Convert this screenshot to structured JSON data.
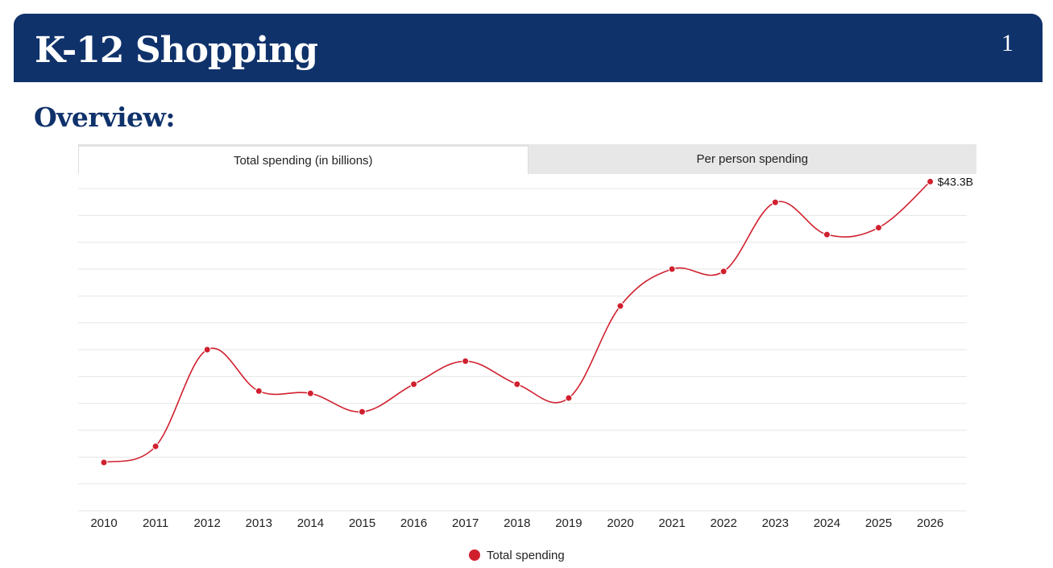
{
  "header": {
    "title": "K-12 Shopping",
    "page_number": "1"
  },
  "section_title": "Overview:",
  "tabs": [
    {
      "label": "Total spending (in billions)",
      "active": true
    },
    {
      "label": "Per person spending",
      "active": false
    }
  ],
  "colors": {
    "header_bg": "#0f326b",
    "series": "#d0202e",
    "grid": "#e6e6e6"
  },
  "chart_data": {
    "type": "line",
    "x": [
      "2010",
      "2011",
      "2012",
      "2013",
      "2014",
      "2015",
      "2016",
      "2017",
      "2018",
      "2019",
      "2020",
      "2021",
      "2022",
      "2023",
      "2024",
      "2025",
      "2026"
    ],
    "series": [
      {
        "name": "Total spending",
        "values": [
          31.1,
          31.8,
          36.0,
          34.2,
          34.1,
          33.3,
          34.5,
          35.5,
          34.5,
          33.9,
          37.9,
          39.5,
          39.4,
          42.4,
          41.0,
          41.3,
          43.3
        ]
      }
    ],
    "data_labels": [
      {
        "index": 16,
        "text": "$43.3B"
      }
    ],
    "ylim": [
      29,
      43
    ]
  }
}
